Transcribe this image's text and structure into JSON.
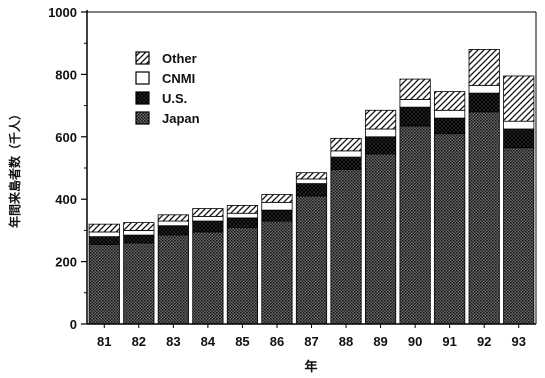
{
  "chart_data": {
    "type": "bar",
    "stacked": true,
    "title": "",
    "xlabel": "年",
    "ylabel": "年間来島者数（千人）",
    "ylim": [
      0,
      1000
    ],
    "yticks": [
      0,
      200,
      400,
      600,
      800,
      1000
    ],
    "grid": false,
    "legend_position": "top-left",
    "categories": [
      "81",
      "82",
      "83",
      "84",
      "85",
      "86",
      "87",
      "88",
      "89",
      "90",
      "91",
      "92",
      "93"
    ],
    "series": [
      {
        "name": "Japan",
        "pattern": "dense-dots",
        "color": "#3a3a3a",
        "values": [
          255,
          260,
          285,
          295,
          310,
          330,
          410,
          495,
          545,
          635,
          610,
          680,
          565
        ]
      },
      {
        "name": "U.S.",
        "pattern": "dark-crosshatch",
        "color": "#1e1e1e",
        "values": [
          25,
          25,
          30,
          35,
          30,
          35,
          40,
          40,
          55,
          60,
          50,
          60,
          60
        ]
      },
      {
        "name": "CNMI",
        "pattern": "white",
        "color": "#ffffff",
        "values": [
          15,
          15,
          15,
          15,
          15,
          25,
          15,
          20,
          25,
          25,
          25,
          25,
          25
        ]
      },
      {
        "name": "Other",
        "pattern": "diagonal-hatch",
        "color": "#ffffff",
        "values": [
          25,
          25,
          20,
          25,
          25,
          25,
          20,
          40,
          60,
          65,
          60,
          115,
          145
        ]
      }
    ]
  }
}
